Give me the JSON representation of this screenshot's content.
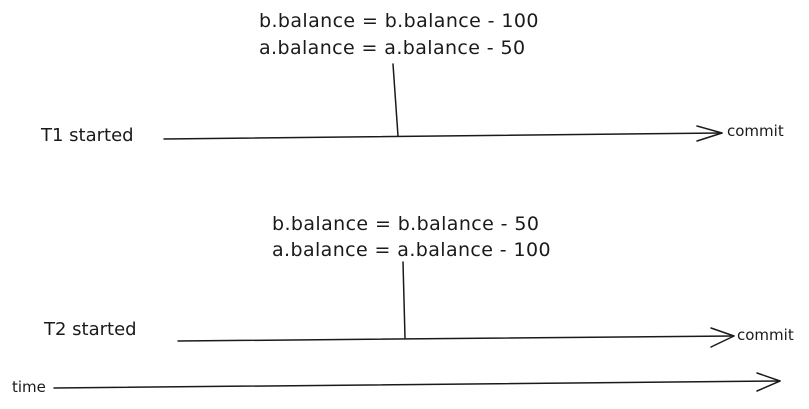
{
  "t1": {
    "start_label": "T1 started",
    "op_line1": "b.balance = b.balance - 100",
    "op_line2": "a.balance = a.balance - 50",
    "end_label": "commit"
  },
  "t2": {
    "start_label": "T2 started",
    "op_line1": "b.balance = b.balance - 50",
    "op_line2": "a.balance = a.balance - 100",
    "end_label": "commit"
  },
  "time_axis": {
    "label": "time"
  },
  "colors": {
    "ink": "#1a1a1a",
    "background": "#ffffff"
  }
}
